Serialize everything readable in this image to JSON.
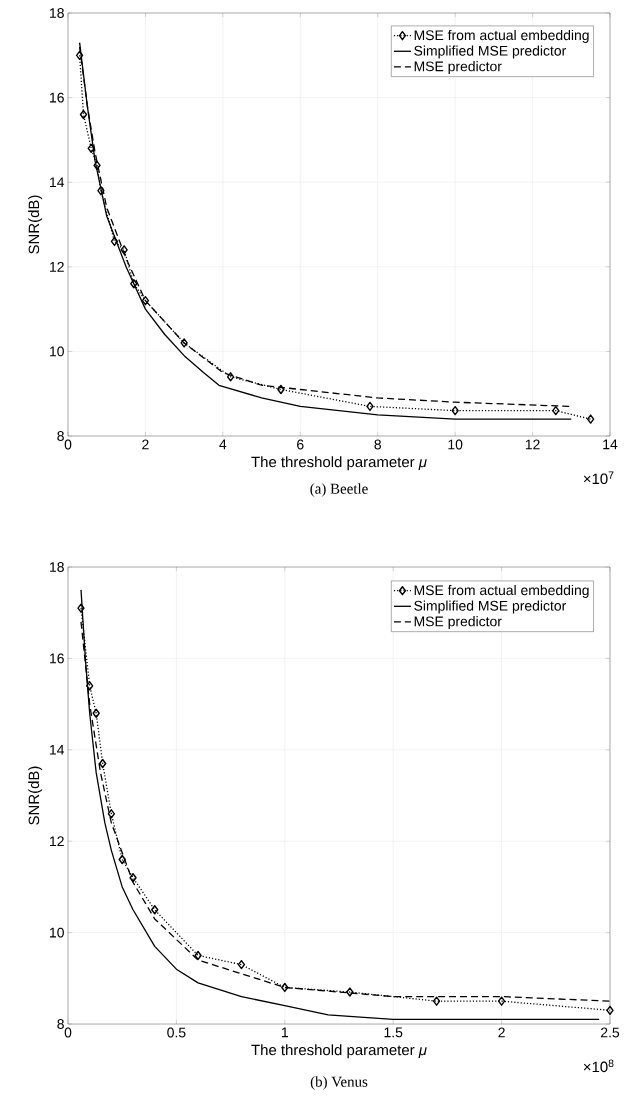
{
  "chart_data": [
    {
      "type": "line",
      "xlabel": "The threshold parameter *μ*",
      "ylabel": "SNR(dB)",
      "xlim": [
        0,
        14
      ],
      "ylim": [
        8,
        18
      ],
      "xticks": [
        0,
        2,
        4,
        6,
        8,
        10,
        12,
        14
      ],
      "yticks": [
        8,
        10,
        12,
        14,
        16,
        18
      ],
      "grid": true,
      "legend": "top right",
      "annotations": [
        "×10$^{7}$",
        "(a) Beetle"
      ],
      "series": [
        {
          "name": "MSE from actual embedding",
          "color": "#000000",
          "marker": "diamond",
          "line_style": "dotted",
          "x": [
            0.3,
            0.4,
            0.6,
            0.75,
            0.85,
            1.2,
            1.45,
            1.7,
            2.0,
            3.0,
            4.2,
            5.5,
            7.8,
            10,
            12.6,
            13.5
          ],
          "values": [
            17.0,
            15.6,
            14.8,
            14.4,
            13.8,
            12.6,
            12.4,
            11.6,
            11.2,
            10.2,
            9.4,
            9.1,
            8.7,
            8.6,
            8.6,
            8.4
          ]
        },
        {
          "name": "Simplified MSE predictor",
          "color": "#000000",
          "marker": "none",
          "line_style": "solid",
          "x": [
            0.3,
            0.5,
            0.7,
            1.0,
            1.5,
            2,
            2.5,
            3,
            3.5,
            3.9,
            5,
            6,
            8,
            10,
            13
          ],
          "values": [
            17.3,
            15.8,
            14.5,
            13.2,
            12.0,
            11.0,
            10.4,
            9.9,
            9.5,
            9.2,
            8.9,
            8.7,
            8.5,
            8.4,
            8.4
          ]
        },
        {
          "name": "MSE predictor",
          "color": "#000000",
          "marker": "none",
          "line_style": "dashed",
          "x": [
            0.3,
            0.5,
            0.7,
            1,
            1.5,
            2,
            3,
            4,
            5,
            6,
            8,
            10,
            13
          ],
          "values": [
            17.2,
            15.8,
            14.7,
            13.4,
            12.2,
            11.2,
            10.2,
            9.5,
            9.2,
            9.1,
            8.9,
            8.8,
            8.7
          ]
        }
      ]
    },
    {
      "type": "line",
      "xlabel": "The threshold parameter *μ*",
      "ylabel": "SNR(dB)",
      "xlim": [
        0,
        2.5
      ],
      "ylim": [
        8,
        18
      ],
      "xticks": [
        0,
        0.5,
        1,
        1.5,
        2,
        2.5
      ],
      "yticks": [
        8,
        10,
        12,
        14,
        16,
        18
      ],
      "grid": true,
      "legend": "top right",
      "annotations": [
        "×10$^{8}$",
        "(b) Venus"
      ],
      "series": [
        {
          "name": "MSE from actual embedding",
          "color": "#000000",
          "marker": "diamond",
          "line_style": "dotted",
          "x": [
            0.06,
            0.1,
            0.13,
            0.16,
            0.2,
            0.25,
            0.3,
            0.4,
            0.6,
            0.8,
            1.0,
            1.3,
            1.7,
            2.0,
            2.5
          ],
          "values": [
            17.1,
            15.4,
            14.8,
            13.7,
            12.6,
            11.6,
            11.2,
            10.5,
            9.5,
            9.3,
            8.8,
            8.7,
            8.5,
            8.5,
            8.3
          ]
        },
        {
          "name": "Simplified MSE predictor",
          "color": "#000000",
          "marker": "none",
          "line_style": "solid",
          "x": [
            0.06,
            0.08,
            0.1,
            0.13,
            0.17,
            0.2,
            0.25,
            0.3,
            0.4,
            0.5,
            0.6,
            0.8,
            1.0,
            1.2,
            1.5,
            2.0,
            2.45
          ],
          "values": [
            17.5,
            16.0,
            14.8,
            13.5,
            12.4,
            11.8,
            11.0,
            10.5,
            9.7,
            9.2,
            8.9,
            8.6,
            8.4,
            8.2,
            8.1,
            8.1,
            8.1
          ]
        },
        {
          "name": "MSE predictor",
          "color": "#000000",
          "marker": "none",
          "line_style": "dashed",
          "x": [
            0.06,
            0.1,
            0.15,
            0.2,
            0.3,
            0.4,
            0.6,
            0.8,
            1.0,
            1.5,
            2.0,
            2.5
          ],
          "values": [
            16.8,
            15.0,
            13.5,
            12.4,
            11.1,
            10.3,
            9.4,
            9.1,
            8.8,
            8.6,
            8.6,
            8.5
          ]
        }
      ]
    }
  ]
}
